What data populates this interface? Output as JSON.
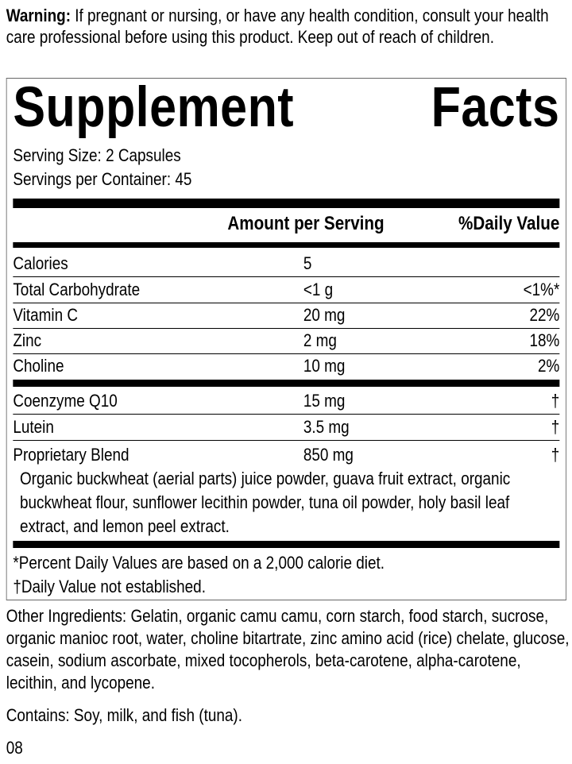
{
  "warning": {
    "label": "Warning:",
    "text": " If pregnant or nursing, or have any health condition, consult your health care professional before using this product. Keep out of reach of children."
  },
  "panel": {
    "title_word1": "Supplement",
    "title_word2": "Facts",
    "serving_size": "Serving Size: 2 Capsules",
    "servings_per_container": "Servings per Container: 45",
    "header_amount": "Amount per Serving",
    "header_dv": "%Daily Value",
    "rows": [
      {
        "name": "Calories",
        "amount": "5",
        "dv": ""
      },
      {
        "name": "Total Carbohydrate",
        "amount": "<1 g",
        "dv": "<1%*"
      },
      {
        "name": "Vitamin C",
        "amount": "20 mg",
        "dv": "22%"
      },
      {
        "name": "Zinc",
        "amount": "2 mg",
        "dv": "18%"
      },
      {
        "name": "Choline",
        "amount": "10 mg",
        "dv": "2%"
      },
      {
        "name": "Coenzyme Q10",
        "amount": "15 mg",
        "dv": "†"
      },
      {
        "name": "Lutein",
        "amount": "3.5 mg",
        "dv": "†"
      },
      {
        "name": "Proprietary Blend",
        "amount": "850 mg",
        "dv": "†"
      }
    ],
    "blend_description": "Organic buckwheat (aerial parts) juice powder, guava fruit extract, organic buckwheat flour, sunflower lecithin powder, tuna oil powder, holy basil leaf extract, and lemon peel extract.",
    "footnote_1": "*Percent Daily Values are based on a 2,000 calorie diet.",
    "footnote_2": "†Daily Value not established."
  },
  "other_ingredients": "Other Ingredients: Gelatin, organic camu camu, corn starch, food starch, sucrose, organic manioc root, water, choline bitartrate, zinc amino acid (rice) chelate, glucose, casein, sodium ascorbate, mixed tocopherols, beta-carotene, alpha-carotene, lecithin, and lycopene.",
  "contains": "Contains: Soy, milk, and fish (tuna).",
  "code": "08"
}
